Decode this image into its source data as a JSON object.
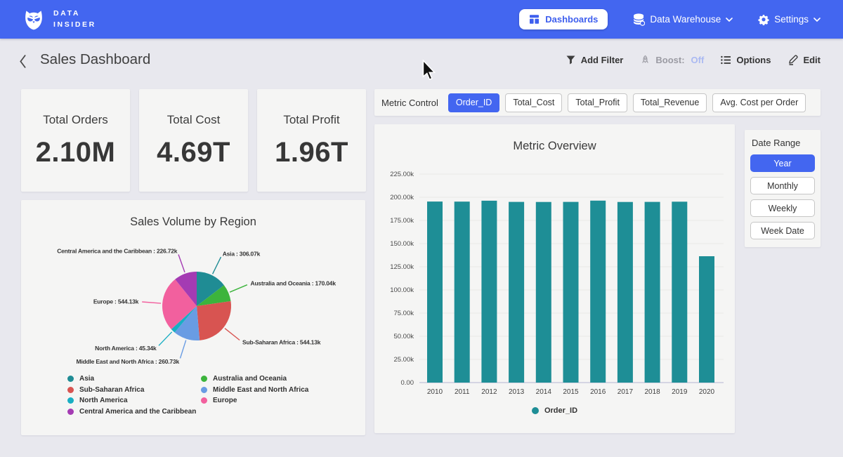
{
  "navbar": {
    "brand_line1": "DATA",
    "brand_line2": "INSIDER",
    "items": [
      {
        "label": "Dashboards",
        "active": true
      },
      {
        "label": "Data Warehouse"
      },
      {
        "label": "Settings"
      }
    ]
  },
  "header": {
    "title": "Sales Dashboard",
    "tools": {
      "add_filter": "Add Filter",
      "boost_label": "Boost:",
      "boost_value": "Off",
      "options": "Options",
      "edit": "Edit"
    }
  },
  "kpis": [
    {
      "label": "Total Orders",
      "value": "2.10M"
    },
    {
      "label": "Total Cost",
      "value": "4.69T"
    },
    {
      "label": "Total Profit",
      "value": "1.96T"
    }
  ],
  "metric_control": {
    "label": "Metric Control",
    "buttons": [
      {
        "label": "Order_ID",
        "active": true
      },
      {
        "label": "Total_Cost",
        "active": false
      },
      {
        "label": "Total_Profit",
        "active": false
      },
      {
        "label": "Total_Revenue",
        "active": false
      },
      {
        "label": "Avg. Cost per Order",
        "active": false
      }
    ]
  },
  "date_range": {
    "label": "Date Range",
    "buttons": [
      {
        "label": "Year",
        "active": true
      },
      {
        "label": "Monthly",
        "active": false
      },
      {
        "label": "Weekly",
        "active": false
      },
      {
        "label": "Week Date",
        "active": false
      }
    ]
  },
  "colors": {
    "primary_blue": "#4366f0",
    "bar_teal": "#1e8e96"
  },
  "chart_data": [
    {
      "type": "pie",
      "title": "Sales Volume by Region",
      "labels": [
        "Asia",
        "Australia and Oceania",
        "Sub-Saharan Africa",
        "Middle East and North Africa",
        "North America",
        "Europe",
        "Central America and the Caribbean"
      ],
      "values_k": [
        306.07,
        170.04,
        544.13,
        260.73,
        45.34,
        544.13,
        226.72
      ],
      "unit": "k",
      "label_format": "{label} : {value}k",
      "colors": [
        "#1f8c94",
        "#3cb43c",
        "#d85451",
        "#699ce3",
        "#19aec3",
        "#f2609e",
        "#a43bb3"
      ],
      "legend_position": "bottom",
      "legend_columns": 2
    },
    {
      "type": "bar",
      "title": "Metric Overview",
      "categories": [
        "2010",
        "2011",
        "2012",
        "2013",
        "2014",
        "2015",
        "2016",
        "2017",
        "2018",
        "2019",
        "2020"
      ],
      "series": [
        {
          "name": "Order_ID",
          "color": "#1e8e96",
          "values_k": [
            195.4,
            195.3,
            196.3,
            195.0,
            194.9,
            195.0,
            196.4,
            194.9,
            195.0,
            195.2,
            136.4
          ]
        }
      ],
      "ylim_k": [
        0,
        225
      ],
      "yticks_k": [
        0,
        25,
        50,
        75,
        100,
        125,
        150,
        175,
        200,
        225
      ],
      "grid": true,
      "legend_position": "bottom"
    }
  ]
}
